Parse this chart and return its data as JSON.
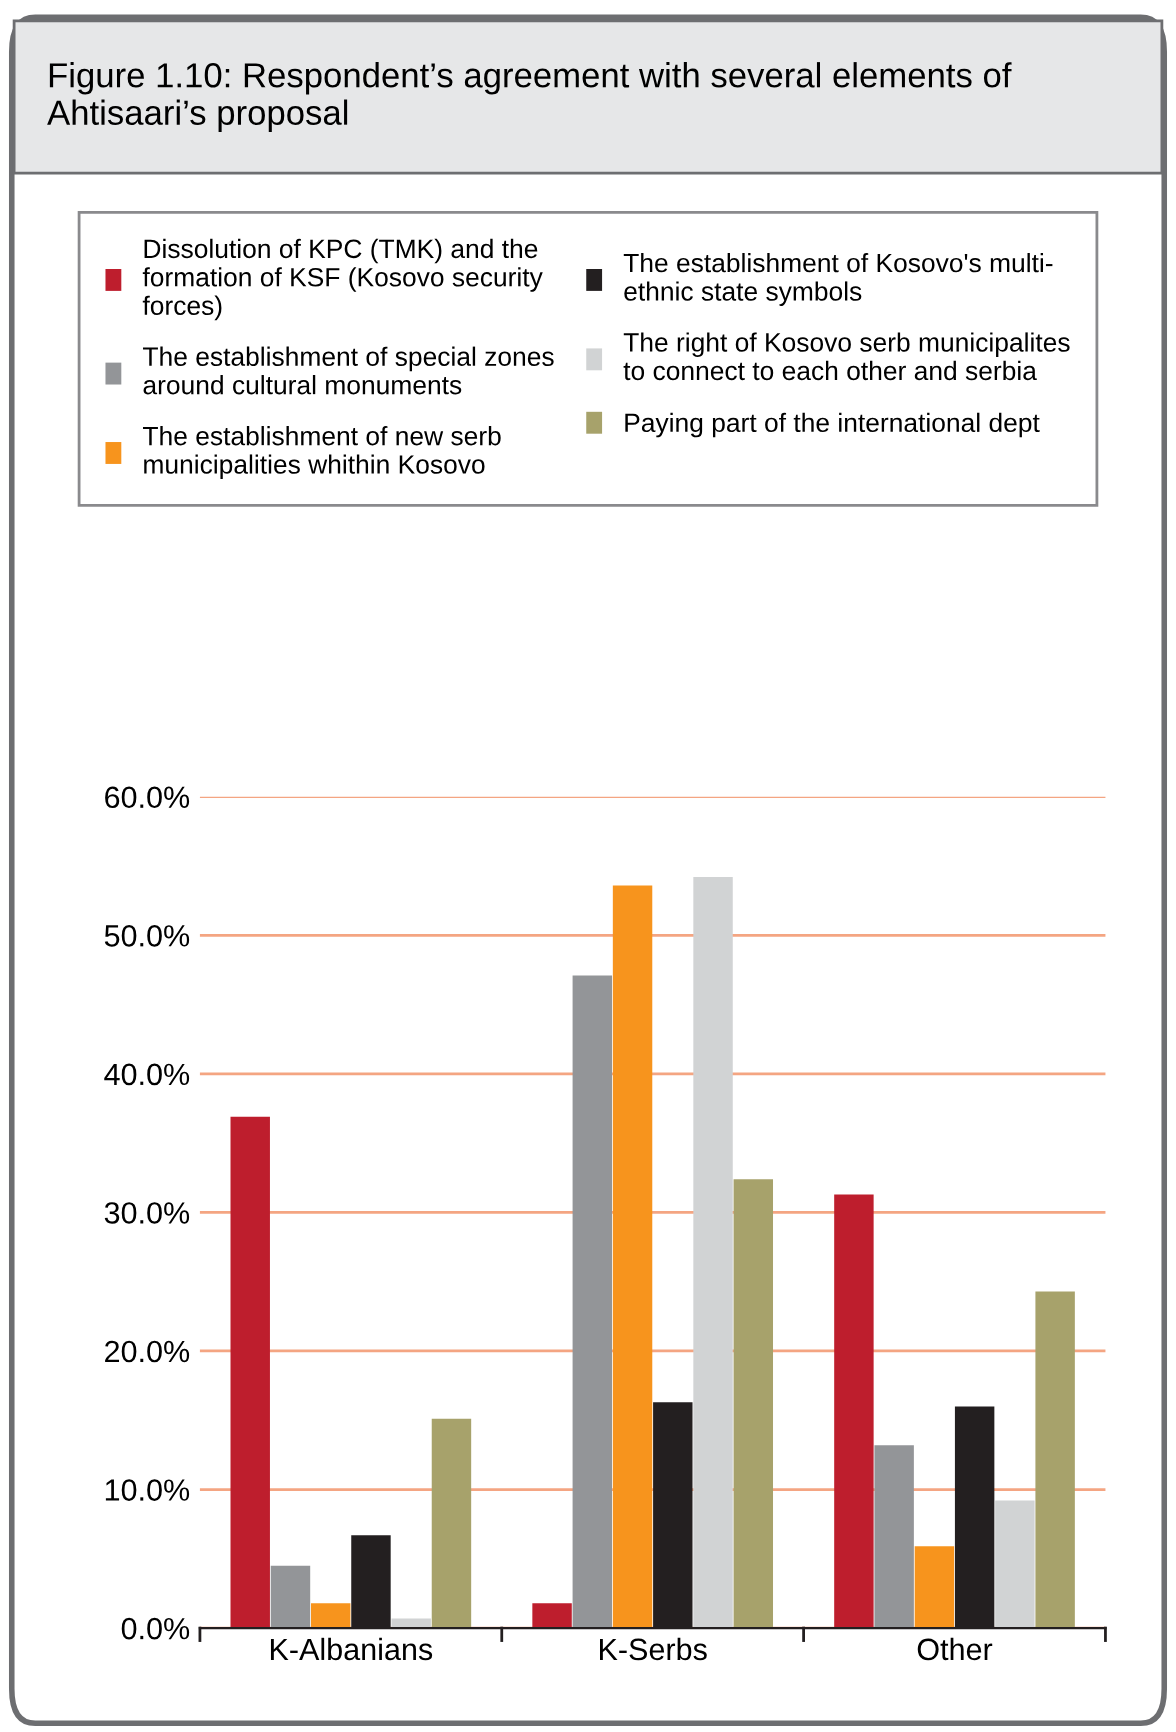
{
  "chart_data": {
    "type": "bar",
    "title": "Figure 1.10: Respondent’s agreement with several elements of Ahtisaari’s proposal",
    "categories": [
      "K-Albanians",
      "K-Serbs",
      "Other"
    ],
    "series": [
      {
        "name": "Dissolution of KPC (TMK) and the\nformation of KSF (Kosovo security\nforces)",
        "color": "#be1e2d",
        "values": [
          36.9,
          1.8,
          31.3
        ]
      },
      {
        "name": "The establishment of special zones\naround cultural monuments",
        "color": "#939598",
        "values": [
          4.5,
          47.1,
          13.2
        ]
      },
      {
        "name": "The establishment of new serb\nmunicipalities whithin Kosovo",
        "color": "#f7941d",
        "values": [
          1.8,
          53.6,
          5.9
        ]
      },
      {
        "name": "The establishment of Kosovo's multi-\nethnic state symbols",
        "color": "#231f20",
        "values": [
          6.7,
          16.3,
          16.0
        ]
      },
      {
        "name": "The right of Kosovo serb municipalites\nto connect to each other and serbia",
        "color": "#d1d3d4",
        "values": [
          0.7,
          54.2,
          9.2
        ]
      },
      {
        "name": "Paying part of the international dept",
        "color": "#a7a26b",
        "values": [
          15.1,
          32.4,
          24.3
        ]
      }
    ],
    "ylim": [
      0,
      60
    ],
    "yticks": [
      {
        "value": 0,
        "label": "0.0%"
      },
      {
        "value": 10,
        "label": "10.0%"
      },
      {
        "value": 20,
        "label": "20.0%"
      },
      {
        "value": 30,
        "label": "30.0%"
      },
      {
        "value": 40,
        "label": "40.0%"
      },
      {
        "value": 50,
        "label": "50.0%"
      },
      {
        "value": 60,
        "label": "60.0%"
      }
    ],
    "grid": "y",
    "legend": "top"
  }
}
